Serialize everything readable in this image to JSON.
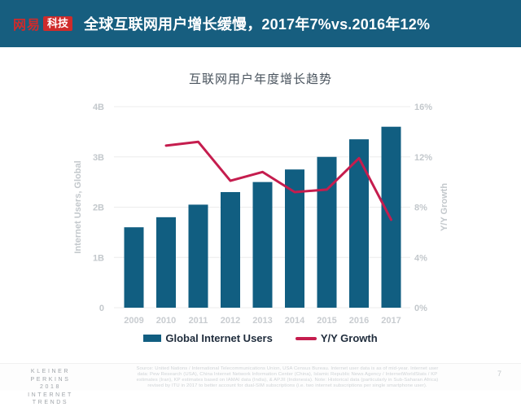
{
  "colors": {
    "header_bg": "#175e7f",
    "bar": "#115e81",
    "line": "#c51d4e",
    "logo_red": "#cf2b2b",
    "grid": "#ececec",
    "axis_text": "#c3c8cc",
    "legend_text": "#1f2c3c"
  },
  "header": {
    "logo_name": "网易",
    "logo_badge": "科技",
    "title": "全球互联网用户增长缓慢，2017年7%vs.2016年12%"
  },
  "chart_data": {
    "type": "bar",
    "title": "互联网用户年度增长趋势",
    "categories": [
      "2009",
      "2010",
      "2011",
      "2012",
      "2013",
      "2014",
      "2015",
      "2016",
      "2017"
    ],
    "series": [
      {
        "name": "Global Internet Users",
        "type": "bar",
        "axis": "left",
        "unit": "B",
        "values": [
          1.6,
          1.8,
          2.05,
          2.3,
          2.5,
          2.75,
          3.0,
          3.35,
          3.6
        ]
      },
      {
        "name": "Y/Y Growth",
        "type": "line",
        "axis": "right",
        "unit": "%",
        "values": [
          null,
          12.9,
          13.2,
          10.1,
          10.8,
          9.2,
          9.4,
          11.9,
          7.0
        ]
      }
    ],
    "left_axis": {
      "label": "Internet Users, Global",
      "ticks": [
        "0",
        "1B",
        "2B",
        "3B",
        "4B"
      ],
      "range": [
        0,
        4
      ]
    },
    "right_axis": {
      "label": "Y/Y Growth",
      "ticks": [
        "0%",
        "4%",
        "8%",
        "12%",
        "16%"
      ],
      "range": [
        0,
        16
      ]
    },
    "grid": true,
    "legend_position": "bottom",
    "legend": [
      {
        "label": "Global Internet Users",
        "swatch": "bar"
      },
      {
        "label": "Y/Y Growth",
        "swatch": "line"
      }
    ]
  },
  "footer": {
    "brand_lines": [
      "KLEINER PERKINS",
      "2018",
      "INTERNET TRENDS"
    ],
    "source_lines": [
      "Source: United Nations / International Telecommunications Union, USA Census Bureau. Internet user data is as of mid-year. Internet user",
      "data: Pew Research (USA), China Internet Network Information Center (China), Islamic Republic News Agency / InternetWorldStats / KP",
      "estimates (Iran), KP estimates based on IAMAI data (India), & APJII (Indonesia). Note: Historical data (particularly in Sub-Saharan Africa)",
      "revised by ITU in 2017 to better account for dual-SIM subscriptions (i.e. two internet subscriptions per single smartphone user)."
    ],
    "page_number": "7"
  }
}
